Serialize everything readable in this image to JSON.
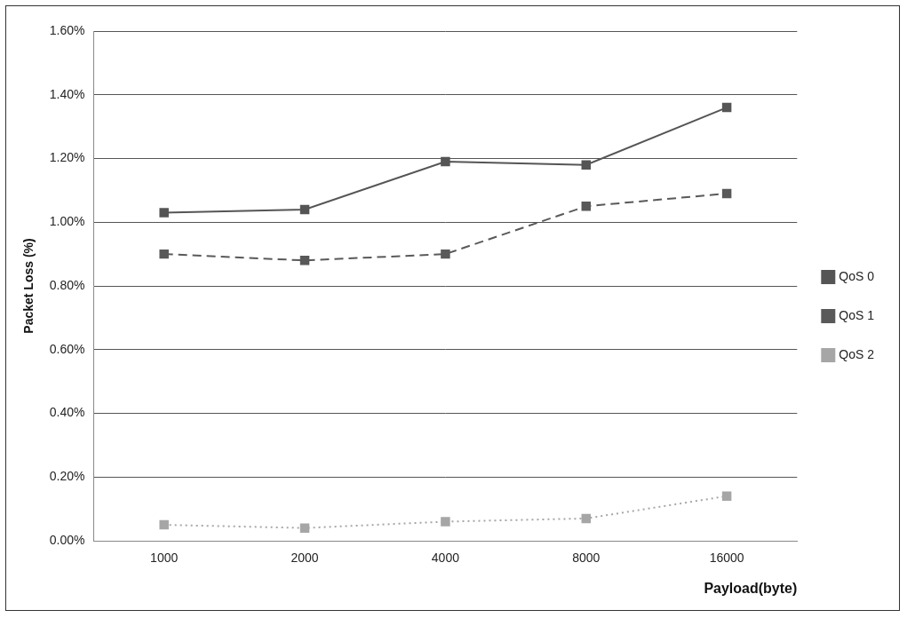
{
  "chart_data": {
    "type": "line",
    "x_label": "Payload(byte)",
    "y_label": "Packet Loss (%)",
    "categories": [
      "1000",
      "2000",
      "4000",
      "8000",
      "16000"
    ],
    "series": [
      {
        "name": "QoS 0",
        "color": "#555555",
        "line_style": "solid",
        "marker": "square",
        "values": [
          1.03,
          1.04,
          1.19,
          1.18,
          1.36
        ]
      },
      {
        "name": "QoS 1",
        "color": "#595959",
        "line_style": "dashed",
        "marker": "square",
        "values": [
          0.9,
          0.88,
          0.9,
          1.05,
          1.09
        ]
      },
      {
        "name": "QoS 2",
        "color": "#a6a6a6",
        "line_style": "dotted",
        "marker": "square",
        "values": [
          0.05,
          0.04,
          0.06,
          0.07,
          0.14
        ]
      }
    ],
    "ylim": [
      0,
      1.6
    ],
    "yticks": [
      {
        "value": 0,
        "label": "0.00%"
      },
      {
        "value": 0.2,
        "label": "0.20%"
      },
      {
        "value": 0.4,
        "label": "0.40%"
      },
      {
        "value": 0.6,
        "label": "0.60%"
      },
      {
        "value": 0.8,
        "label": "0.80%"
      },
      {
        "value": 1.0,
        "label": "1.00%"
      },
      {
        "value": 1.2,
        "label": "1.20%"
      },
      {
        "value": 1.4,
        "label": "1.40%"
      },
      {
        "value": 1.6,
        "label": "1.60%"
      }
    ],
    "grid": true,
    "legend": "right"
  }
}
